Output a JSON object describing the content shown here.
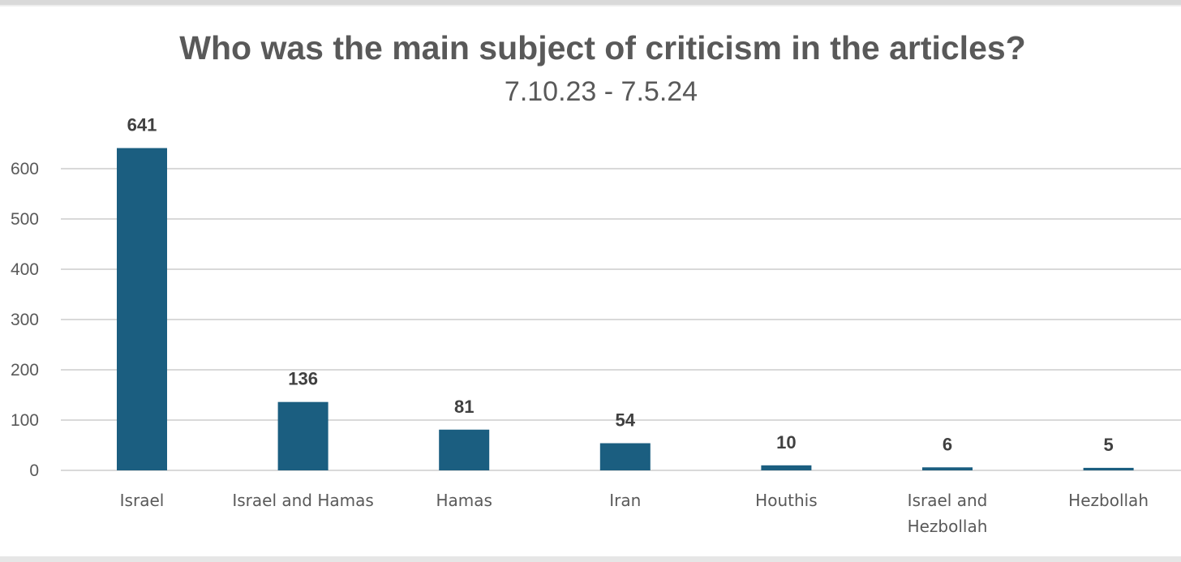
{
  "chart_data": {
    "type": "bar",
    "title": "Who was the main subject of criticism in the articles?",
    "subtitle": "7.10.23 - 7.5.24",
    "categories": [
      "Israel",
      "Israel and Hamas",
      "Hamas",
      "Iran",
      "Houthis",
      "Israel and Hezbollah",
      "Hezbollah"
    ],
    "category_lines": [
      [
        "Israel"
      ],
      [
        "Israel and Hamas"
      ],
      [
        "Hamas"
      ],
      [
        "Iran"
      ],
      [
        "Houthis"
      ],
      [
        "Israel and",
        "Hezbollah"
      ],
      [
        "Hezbollah"
      ]
    ],
    "values": [
      641,
      136,
      81,
      54,
      10,
      6,
      5
    ],
    "data_labels": [
      "641",
      "136",
      "81",
      "54",
      "10",
      "6",
      "5"
    ],
    "y_ticks": [
      0,
      100,
      200,
      300,
      400,
      500,
      600
    ],
    "ylim": [
      0,
      700
    ],
    "xlabel": "",
    "ylabel": "",
    "grid": true,
    "legend": "none",
    "bar_color": "#1b5e80",
    "grid_color": "#d9d9d9"
  }
}
